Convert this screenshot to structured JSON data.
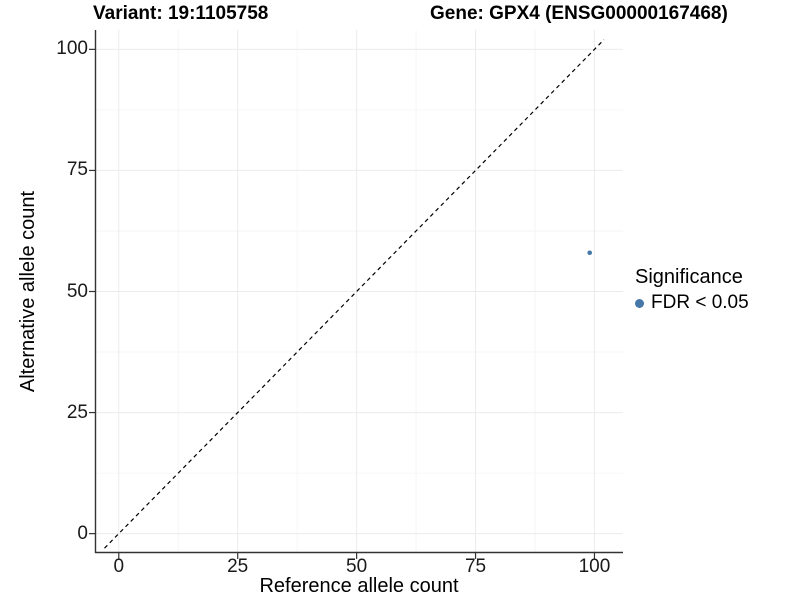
{
  "header": {
    "title_variant": "Variant: 19:1105758",
    "title_gene": "Gene: GPX4 (ENSG00000167468)"
  },
  "chart_data": {
    "type": "scatter",
    "xlabel": "Reference allele count",
    "ylabel": "Alternative allele count",
    "xlim": [
      -5,
      106
    ],
    "ylim": [
      -4,
      104
    ],
    "x_ticks": [
      0,
      25,
      50,
      75,
      100
    ],
    "y_ticks": [
      0,
      25,
      50,
      75,
      100
    ],
    "grid": "major+minor",
    "identity_line": {
      "type": "y=x",
      "style": "dashed",
      "color": "#000000"
    },
    "series": [
      {
        "name": "FDR < 0.05",
        "color": "#4577a8",
        "point_radius": 2.3,
        "points": [
          {
            "x": 99,
            "y": 58
          }
        ]
      }
    ],
    "legend": {
      "title": "Significance",
      "position": "right",
      "items": [
        {
          "label": "FDR < 0.05",
          "color": "#4577a8"
        }
      ]
    }
  },
  "colors": {
    "background": "#ffffff",
    "axis_line": "#333333",
    "tick_mark": "#333333",
    "tick_text": "#1a1a1a",
    "grid_major": "#ebebeb",
    "grid_minor": "#f6f6f6"
  }
}
